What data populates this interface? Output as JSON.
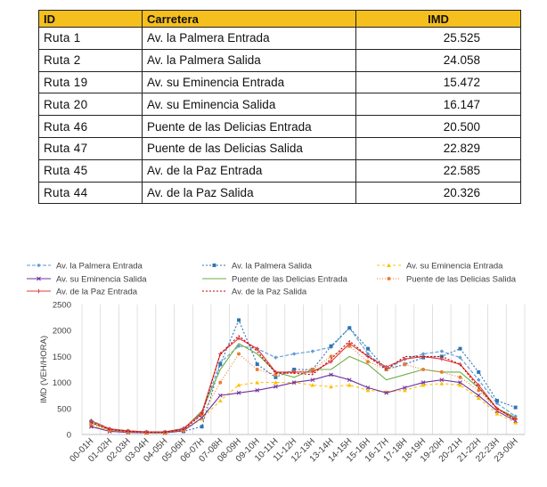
{
  "table": {
    "headers": [
      "ID",
      "Carretera",
      "IMD"
    ],
    "rows": [
      [
        "Ruta  1",
        "Av. la Palmera Entrada",
        "25.525"
      ],
      [
        "Ruta  2",
        "Av. la Palmera Salida",
        "24.058"
      ],
      [
        "Ruta  19",
        "Av. su Eminencia Entrada",
        "15.472"
      ],
      [
        "Ruta  20",
        "Av. su Eminencia Salida",
        "16.147"
      ],
      [
        "Ruta  46",
        "Puente de las Delicias  Entrada",
        "20.500"
      ],
      [
        "Ruta  47",
        "Puente de las Delicias  Salida",
        "22.829"
      ],
      [
        "Ruta  45",
        "Av. de la Paz Entrada",
        "22.585"
      ],
      [
        "Ruta  44",
        "Av. de la Paz Salida",
        "20.326"
      ]
    ],
    "header_color": "#f5bf1d"
  },
  "chart_data": {
    "type": "line",
    "title": "",
    "xlabel": "",
    "ylabel": "IMD (VEH/HORA)",
    "ylim": [
      0,
      2500
    ],
    "yticks": [
      0,
      500,
      1000,
      1500,
      2000,
      2500
    ],
    "grid": "vertical",
    "legend_position": "top",
    "categories": [
      "00-01H",
      "01-02H",
      "02-03H",
      "03-04H",
      "04-05H",
      "05-06H",
      "06-07H",
      "07-08H",
      "08-09H",
      "09-10H",
      "10-11H",
      "11-12H",
      "12-13H",
      "13-14H",
      "14-15H",
      "15-16H",
      "16-17H",
      "17-18H",
      "18-19H",
      "19-20H",
      "20-21H",
      "21-22H",
      "22-23H",
      "23-00H"
    ],
    "series": [
      {
        "name": "Av. la Palmera Entrada",
        "color": "#5b9bd5",
        "dash": "4,2",
        "marker": "diamond",
        "values": [
          270,
          110,
          70,
          50,
          50,
          120,
          400,
          1380,
          1700,
          1650,
          1480,
          1550,
          1600,
          1680,
          2050,
          1550,
          1250,
          1450,
          1550,
          1600,
          1480,
          1050,
          600,
          350
        ]
      },
      {
        "name": "Av. la Palmera Salida",
        "color": "#2e75b6",
        "dash": "2,2",
        "marker": "square",
        "values": [
          240,
          90,
          60,
          40,
          40,
          60,
          150,
          1350,
          2200,
          1350,
          1100,
          1250,
          1250,
          1700,
          2050,
          1650,
          1250,
          1350,
          1480,
          1500,
          1650,
          1200,
          650,
          520
        ]
      },
      {
        "name": "Av. su Eminencia Entrada",
        "color": "#ffc000",
        "dash": "3,3",
        "marker": "triangle",
        "values": [
          170,
          70,
          40,
          30,
          30,
          80,
          300,
          650,
          950,
          1000,
          1000,
          1000,
          950,
          920,
          950,
          850,
          820,
          850,
          950,
          980,
          950,
          700,
          400,
          230
        ]
      },
      {
        "name": "Av. su Eminencia Salida",
        "color": "#7030a0",
        "dash": "",
        "marker": "x",
        "values": [
          150,
          60,
          40,
          30,
          30,
          70,
          320,
          750,
          800,
          850,
          920,
          1000,
          1050,
          1150,
          1050,
          900,
          800,
          900,
          1000,
          1050,
          1000,
          750,
          450,
          260
        ]
      },
      {
        "name": "Puente de las Delicias  Entrada",
        "color": "#70ad47",
        "dash": "",
        "marker": "none",
        "values": [
          230,
          90,
          60,
          40,
          40,
          100,
          450,
          1250,
          1750,
          1550,
          1200,
          1100,
          1250,
          1250,
          1500,
          1350,
          1050,
          1150,
          1250,
          1200,
          1200,
          900,
          500,
          330
        ]
      },
      {
        "name": "Puente de las Delicias  Salida",
        "color": "#ed7d31",
        "dash": "1,2",
        "marker": "circle",
        "values": [
          200,
          80,
          50,
          35,
          35,
          80,
          380,
          1000,
          1550,
          1250,
          1150,
          1200,
          1250,
          1500,
          1700,
          1400,
          1250,
          1350,
          1250,
          1200,
          1100,
          850,
          480,
          300
        ]
      },
      {
        "name": "Av. de la Paz Entrada",
        "color": "#e03a3a",
        "dash": "",
        "marker": "plus",
        "values": [
          260,
          110,
          70,
          50,
          50,
          110,
          420,
          1550,
          1850,
          1650,
          1200,
          1200,
          1200,
          1400,
          1750,
          1500,
          1300,
          1450,
          1500,
          1450,
          1350,
          950,
          500,
          300
        ]
      },
      {
        "name": "Av. de la Paz Salida",
        "color": "#c00000",
        "dash": "2,2",
        "marker": "none",
        "values": [
          230,
          95,
          60,
          45,
          45,
          95,
          380,
          1550,
          1900,
          1600,
          1180,
          1180,
          1150,
          1450,
          1800,
          1500,
          1250,
          1500,
          1500,
          1500,
          1350,
          900,
          500,
          280
        ]
      }
    ]
  }
}
